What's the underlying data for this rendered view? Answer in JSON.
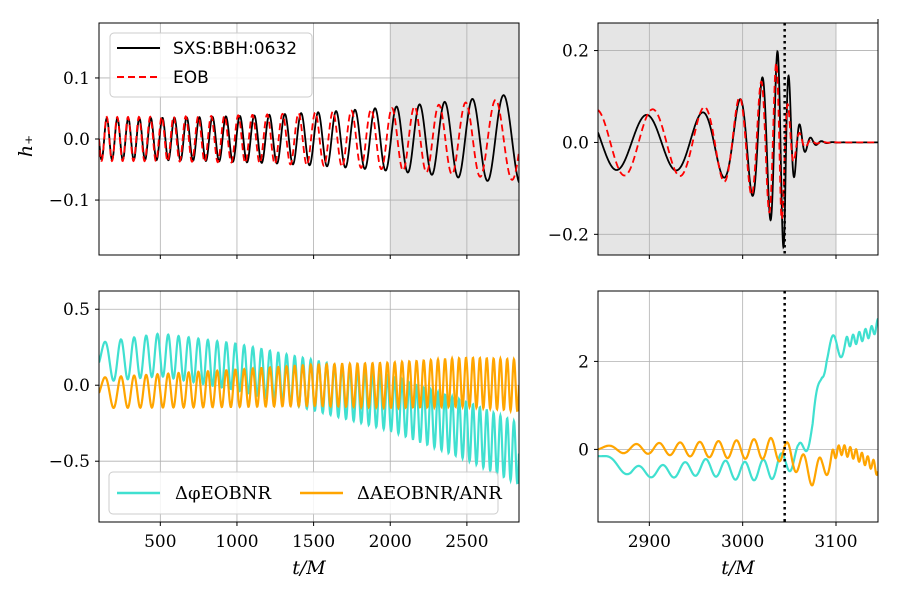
{
  "chart_data": [
    {
      "id": "A",
      "type": "line",
      "description_panel": "top-left",
      "xlim": [
        100,
        2840
      ],
      "ylim": [
        -0.19,
        0.19
      ],
      "xticks": [
        500,
        1000,
        1500,
        2000,
        2500
      ],
      "show_xticklabels": false,
      "yticks": [
        -0.1,
        0.0,
        0.1
      ],
      "yticklabels": [
        "−0.1",
        "0.0",
        "0.1"
      ],
      "ylabel": "h₊",
      "shaded_x_range": [
        2000,
        2840
      ],
      "legend": {
        "position": "upper-left",
        "entries": [
          "SXS:BBH:0632",
          "EOB"
        ]
      },
      "series": [
        {
          "name": "SXS:BBH:0632",
          "color": "#000000",
          "dash": "solid",
          "model": {
            "kind": "inspiral",
            "t0": 100,
            "phase0": 1.5708,
            "cycles": 25.2,
            "chirp": 1.55,
            "amp_start": 0.034,
            "amp_end": 0.075
          }
        },
        {
          "name": "EOB",
          "color": "#ff0000",
          "dash": "dashed",
          "model": {
            "kind": "inspiral",
            "t0": 100,
            "phase0": 1.5708,
            "cycles": 25.45,
            "chirp": 1.55,
            "amp_start": 0.036,
            "amp_end": 0.068
          }
        }
      ]
    },
    {
      "id": "B",
      "type": "line",
      "description_panel": "top-right",
      "xlim": [
        2845,
        3145
      ],
      "ylim": [
        -0.245,
        0.26
      ],
      "xticks": [
        2900,
        3000,
        3100
      ],
      "show_xticklabels": false,
      "yticks": [
        -0.2,
        0.0,
        0.2
      ],
      "yticklabels": [
        "−0.2",
        "0.0",
        "0.2"
      ],
      "shaded_x_range": [
        2845,
        3100
      ],
      "vline_x": 3045,
      "series": [
        {
          "name": "SXS:BBH:0632",
          "color": "#000000",
          "dash": "solid",
          "model": {
            "kind": "merger",
            "t_peak": 3045,
            "amp_start": 0.06,
            "amp_peak": 0.235,
            "f_start": 0.0155,
            "f_peak": 0.085,
            "phase_offset": 1.2
          }
        },
        {
          "name": "EOB",
          "color": "#ff0000",
          "dash": "dashed",
          "model": {
            "kind": "merger",
            "t_peak": 3041,
            "amp_start": 0.072,
            "amp_peak": 0.19,
            "f_start": 0.0165,
            "f_peak": 0.08,
            "phase_offset": 0.2
          }
        }
      ]
    },
    {
      "id": "C",
      "type": "line",
      "description_panel": "bottom-left",
      "xlim": [
        100,
        2840
      ],
      "ylim": [
        -0.9,
        0.62
      ],
      "xticks": [
        500,
        1000,
        1500,
        2000,
        2500
      ],
      "xticklabels": [
        "500",
        "1000",
        "1500",
        "2000",
        "2500"
      ],
      "xlabel": "t/M",
      "yticks": [
        -0.5,
        0.0,
        0.5
      ],
      "yticklabels": [
        "−0.5",
        "0.0",
        "0.5"
      ],
      "legend": {
        "position": "lower-left",
        "entries": [
          "ΔφEOBNR",
          "ΔAEOBNR/ANR"
        ]
      },
      "series": [
        {
          "name": "ΔφEOBNR",
          "color": "#40e0d0",
          "points": [
            [
              100,
              0.15
            ],
            [
              500,
              0.2
            ],
            [
              1000,
              0.12
            ],
            [
              1500,
              0.0
            ],
            [
              2000,
              -0.12
            ],
            [
              2500,
              -0.3
            ],
            [
              2840,
              -0.45
            ]
          ],
          "osc": {
            "amp_start": 0.13,
            "amp_end": 0.2,
            "cycles": 50
          }
        },
        {
          "name": "ΔAEOBNR/ANR",
          "color": "#ffa500",
          "points": [
            [
              100,
              -0.05
            ],
            [
              1000,
              -0.02
            ],
            [
              1500,
              0.0
            ],
            [
              2000,
              0.0
            ],
            [
              2500,
              0.02
            ],
            [
              2840,
              0.0
            ]
          ],
          "osc": {
            "amp_start": 0.1,
            "amp_end": 0.17,
            "cycles": 50
          }
        }
      ]
    },
    {
      "id": "D",
      "type": "line",
      "description_panel": "bottom-right",
      "xlim": [
        2845,
        3145
      ],
      "ylim": [
        -1.65,
        3.6
      ],
      "xticks": [
        2900,
        3000,
        3100
      ],
      "xticklabels": [
        "2900",
        "3000",
        "3100"
      ],
      "xlabel": "t/M",
      "yticks": [
        0,
        2
      ],
      "yticklabels": [
        "0",
        "2"
      ],
      "vline_x": 3045,
      "series": [
        {
          "name": "ΔφEOBNR",
          "color": "#40e0d0",
          "points": [
            [
              2845,
              -0.15
            ],
            [
              2880,
              -0.5
            ],
            [
              2920,
              -0.5
            ],
            [
              2960,
              -0.4
            ],
            [
              3000,
              -0.5
            ],
            [
              3030,
              -0.45
            ],
            [
              3045,
              -0.3
            ],
            [
              3060,
              -0.15
            ],
            [
              3075,
              0.5
            ],
            [
              3085,
              1.8
            ],
            [
              3090,
              2.2
            ],
            [
              3100,
              2.35
            ],
            [
              3120,
              2.5
            ],
            [
              3140,
              2.7
            ],
            [
              3145,
              2.85
            ]
          ],
          "osc": {
            "amp_start": 0.09,
            "amp_end": 0.3,
            "cycles": 12,
            "osc_end_x": 3110
          }
        },
        {
          "name": "ΔAEOBNR/ANR",
          "color": "#ffa500",
          "points": [
            [
              2845,
              0.0
            ],
            [
              2900,
              0.02
            ],
            [
              2950,
              0.0
            ],
            [
              3000,
              0.0
            ],
            [
              3030,
              0.02
            ],
            [
              3045,
              -0.05
            ],
            [
              3060,
              -0.3
            ],
            [
              3075,
              -0.55
            ],
            [
              3085,
              -0.45
            ],
            [
              3095,
              -0.15
            ],
            [
              3105,
              0.0
            ],
            [
              3120,
              -0.1
            ],
            [
              3140,
              -0.35
            ],
            [
              3145,
              -0.5
            ]
          ],
          "osc": {
            "amp_start": 0.07,
            "amp_end": 0.3,
            "cycles": 12,
            "osc_end_x": 3095
          }
        }
      ]
    }
  ]
}
